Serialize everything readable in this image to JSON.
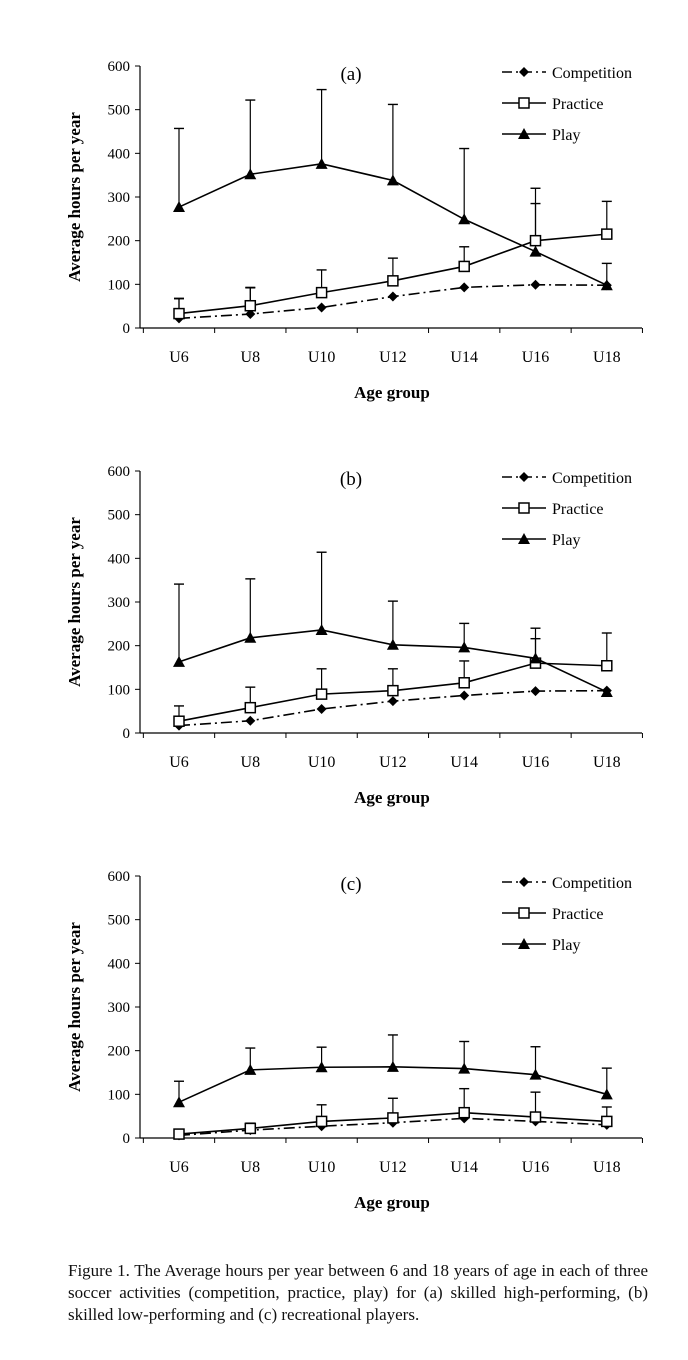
{
  "caption": "Figure 1. The Average hours per year between 6 and 18 years of age in each of three soccer activities (competition, practice, play) for (a) skilled high-performing, (b) skilled low-performing and (c) recreational players.",
  "legend": [
    "Competition",
    "Practice",
    "Play"
  ],
  "chart_data": [
    {
      "type": "line",
      "title": "(a)",
      "xlabel": "Age group",
      "ylabel": "Average hours per year",
      "categories": [
        "U6",
        "U8",
        "U10",
        "U12",
        "U14",
        "U16",
        "U18"
      ],
      "ylim": [
        0,
        600
      ],
      "yticks": [
        0,
        100,
        200,
        300,
        400,
        500,
        600
      ],
      "legend_position": "top-right",
      "series": [
        {
          "name": "Competition",
          "marker": "diamond",
          "values": [
            22,
            32,
            47,
            72,
            93,
            99,
            98
          ],
          "error": [
            45,
            60,
            0,
            0,
            0,
            0,
            0
          ]
        },
        {
          "name": "Practice",
          "marker": "square",
          "values": [
            33,
            51,
            81,
            108,
            141,
            200,
            215
          ],
          "error": [
            35,
            42,
            52,
            52,
            45,
            85,
            75
          ]
        },
        {
          "name": "Play",
          "marker": "triangle",
          "values": [
            277,
            352,
            376,
            338,
            249,
            175,
            98
          ],
          "error": [
            180,
            170,
            170,
            174,
            162,
            145,
            50
          ]
        }
      ]
    },
    {
      "type": "line",
      "title": "(b)",
      "xlabel": "Age group",
      "ylabel": "Average hours per year",
      "categories": [
        "U6",
        "U8",
        "U10",
        "U12",
        "U14",
        "U16",
        "U18"
      ],
      "ylim": [
        0,
        600
      ],
      "yticks": [
        0,
        100,
        200,
        300,
        400,
        500,
        600
      ],
      "legend_position": "top-right",
      "series": [
        {
          "name": "Competition",
          "marker": "diamond",
          "values": [
            17,
            28,
            55,
            73,
            86,
            96,
            97
          ],
          "error": [
            0,
            0,
            0,
            0,
            0,
            0,
            0
          ]
        },
        {
          "name": "Practice",
          "marker": "square",
          "values": [
            27,
            58,
            89,
            97,
            115,
            160,
            154
          ],
          "error": [
            35,
            47,
            58,
            50,
            50,
            80,
            75
          ]
        },
        {
          "name": "Play",
          "marker": "triangle",
          "values": [
            163,
            218,
            236,
            202,
            196,
            171,
            94
          ],
          "error": [
            178,
            135,
            178,
            100,
            55,
            45,
            0
          ]
        }
      ]
    },
    {
      "type": "line",
      "title": "(c)",
      "xlabel": "Age group",
      "ylabel": "Average hours per year",
      "categories": [
        "U6",
        "U8",
        "U10",
        "U12",
        "U14",
        "U16",
        "U18"
      ],
      "ylim": [
        0,
        600
      ],
      "yticks": [
        0,
        100,
        200,
        300,
        400,
        500,
        600
      ],
      "legend_position": "top-right",
      "series": [
        {
          "name": "Competition",
          "marker": "diamond",
          "values": [
            6,
            18,
            27,
            35,
            45,
            38,
            30
          ],
          "error": [
            0,
            0,
            0,
            0,
            0,
            0,
            0
          ]
        },
        {
          "name": "Practice",
          "marker": "square",
          "values": [
            9,
            22,
            38,
            46,
            58,
            48,
            38
          ],
          "error": [
            6,
            12,
            38,
            45,
            55,
            57,
            33
          ]
        },
        {
          "name": "Play",
          "marker": "triangle",
          "values": [
            82,
            156,
            162,
            163,
            159,
            145,
            100
          ],
          "error": [
            48,
            50,
            46,
            73,
            62,
            64,
            60
          ]
        }
      ]
    }
  ]
}
